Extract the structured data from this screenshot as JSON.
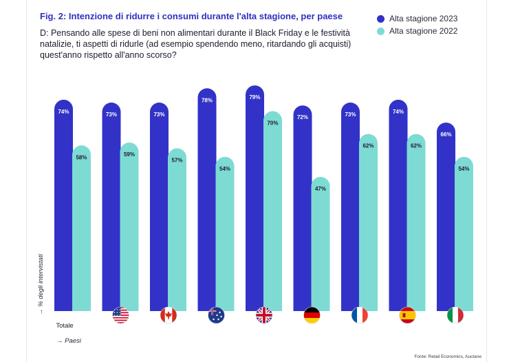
{
  "title": "Fig. 2: Intenzione di ridurre i consumi durante l'alta stagione, per paese",
  "question": "D: Pensando alle spese di beni non alimentari durante il Black Friday e le festività natalizie, ti aspetti di ridurle (ad esempio spendendo meno, ritardando gli acquisti) quest'anno rispetto all'anno scorso?",
  "y_axis_label": "% degli intervistati",
  "x_axis_label": "Paesi",
  "source": "Fonte: Retail Economics, Auctane",
  "colors": {
    "series_2023": "#3232c8",
    "series_2022": "#7ddbd4",
    "title": "#2f2fc4"
  },
  "chart_data": {
    "type": "bar",
    "categories": [
      "Totale",
      "us-flag",
      "ca-flag",
      "au-flag",
      "uk-flag",
      "de-flag",
      "fr-flag",
      "es-flag",
      "it-flag"
    ],
    "category_display": [
      "Totale",
      "",
      "",
      "",
      "",
      "",
      "",
      "",
      ""
    ],
    "series": [
      {
        "name": "Alta stagione 2023",
        "values": [
          74,
          73,
          73,
          78,
          79,
          72,
          73,
          74,
          66
        ],
        "labels": [
          "74%",
          "73%",
          "73%",
          "78%",
          "79%",
          "72%",
          "73%",
          "74%",
          "66%"
        ]
      },
      {
        "name": "Alta stagione 2022",
        "values": [
          58,
          59,
          57,
          54,
          70,
          47,
          62,
          62,
          54
        ],
        "labels": [
          "58%",
          "59%",
          "57%",
          "54%",
          "70%",
          "47%",
          "62%",
          "62%",
          "54%"
        ]
      }
    ],
    "ylabel": "% degli intervistati",
    "xlabel": "Paesi",
    "ylim": [
      0,
      100
    ],
    "grid": false,
    "legend": "top-right"
  }
}
